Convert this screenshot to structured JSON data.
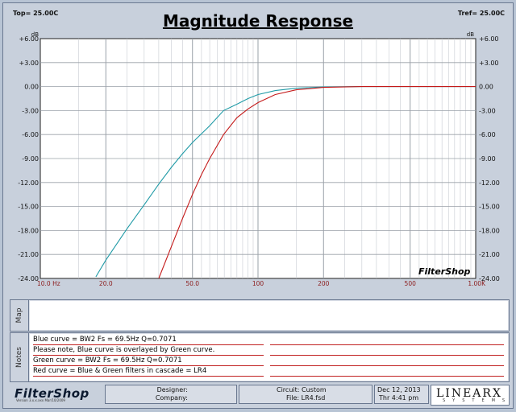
{
  "header": {
    "top_label": "Top=  25.00C",
    "tref_label": "Tref=  25.00C",
    "title": "Magnitude Response"
  },
  "chart_data": {
    "type": "line",
    "title": "Magnitude Response",
    "ylabel": "dB",
    "xscale": "log",
    "xlim": [
      10,
      1000
    ],
    "ylim": [
      -24,
      6
    ],
    "grid": true,
    "y_ticks": [
      "+6.00",
      "+3.00",
      "0.00",
      "-3.00",
      "-6.00",
      "-9.00",
      "-12.00",
      "-15.00",
      "-18.00",
      "-21.00",
      "-24.00"
    ],
    "x_ticks": [
      {
        "value": 10,
        "label": "10.0 Hz"
      },
      {
        "value": 20,
        "label": "20.0"
      },
      {
        "value": 50,
        "label": "50.0"
      },
      {
        "value": 100,
        "label": "100"
      },
      {
        "value": 200,
        "label": "200"
      },
      {
        "value": 500,
        "label": "500"
      },
      {
        "value": 1000,
        "label": "1.00K"
      }
    ],
    "series": [
      {
        "color": "#1f9aa6",
        "x": [
          18,
          20,
          25,
          30,
          35,
          40,
          45,
          50,
          60,
          69.5,
          80,
          90,
          100,
          120,
          150,
          200,
          300,
          500,
          1000
        ],
        "y": [
          -23.8,
          -21.7,
          -17.8,
          -14.8,
          -12.2,
          -10.1,
          -8.4,
          -7.0,
          -4.9,
          -3.0,
          -2.2,
          -1.5,
          -1.0,
          -0.5,
          -0.2,
          -0.05,
          0.0,
          0.0,
          0.0
        ]
      },
      {
        "color": "#c41a1a",
        "x": [
          35,
          40,
          45,
          50,
          55,
          60,
          69.5,
          80,
          90,
          100,
          120,
          150,
          200,
          300,
          500,
          1000
        ],
        "y": [
          -24.0,
          -20.0,
          -16.5,
          -13.5,
          -11.0,
          -9.0,
          -6.0,
          -3.9,
          -2.8,
          -2.0,
          -1.0,
          -0.4,
          -0.1,
          0.0,
          0.0,
          0.0
        ]
      }
    ]
  },
  "watermark": "FilterShop",
  "map_panel": {
    "label": "Map"
  },
  "notes_panel": {
    "label": "Notes",
    "lines": [
      "Blue curve = BW2  Fs = 69.5Hz  Q=0.7071",
      "Please note, Blue curve is overlayed by Green curve.",
      "Green curve = BW2  Fs = 69.5Hz  Q=0.7071",
      "Red curve = Blue & Green filters in cascade = LR4"
    ]
  },
  "footer": {
    "logo": "FilterShop",
    "version": "Version 3.x.x.xxx Mar/10/2009",
    "designer_label": "Designer:",
    "company_label": "Company:",
    "circuit_label": "Circuit: Custom",
    "file_label": "File: LR4.fsd",
    "date": "Dec 12, 2013",
    "time": "Thr  4:41 pm",
    "brand": "LINEARX",
    "brand_sub": "SYSTEMS"
  }
}
